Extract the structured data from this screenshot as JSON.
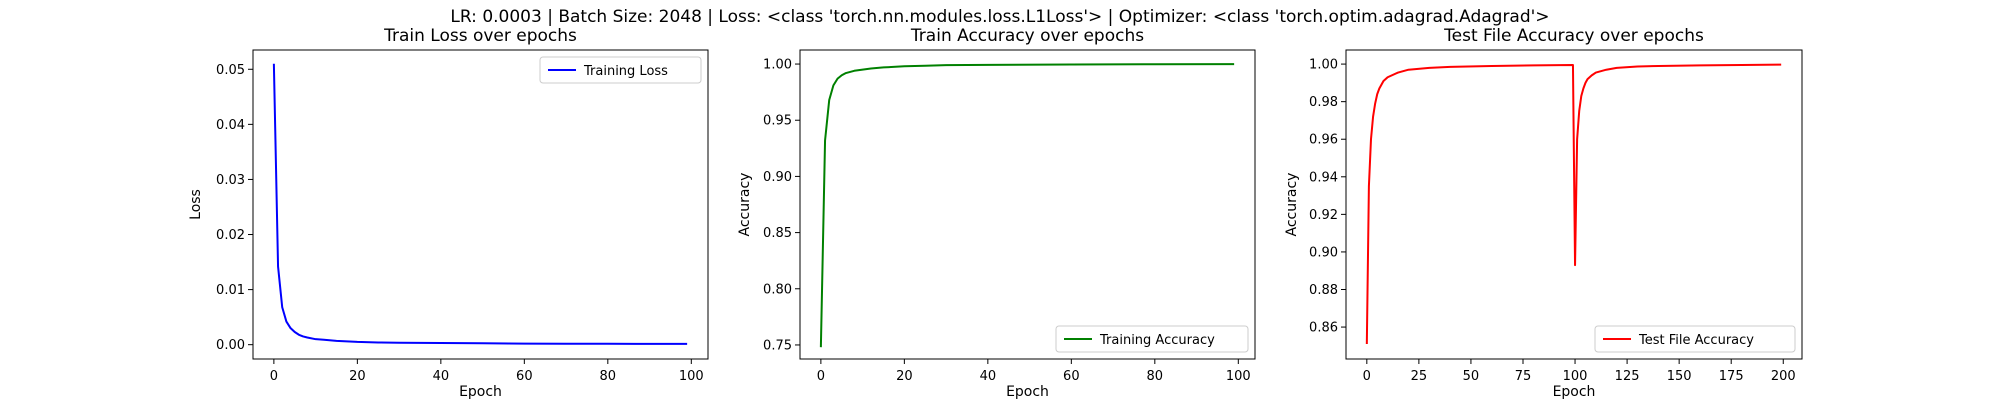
{
  "suptitle": "LR: 0.0003 | Batch Size: 2048 | Loss: <class 'torch.nn.modules.loss.L1Loss'> | Optimizer: <class 'torch.optim.adagrad.Adagrad'>",
  "chart_data": [
    {
      "type": "line",
      "title": "Train Loss over epochs",
      "xlabel": "Epoch",
      "ylabel": "Loss",
      "xlim": [
        -5,
        104
      ],
      "ylim": [
        -0.0026,
        0.0535
      ],
      "xticks": [
        0,
        20,
        40,
        60,
        80,
        100
      ],
      "xtick_labels": [
        "0",
        "20",
        "40",
        "60",
        "80",
        "100"
      ],
      "yticks": [
        0.0,
        0.01,
        0.02,
        0.03,
        0.04,
        0.05
      ],
      "ytick_labels": [
        "0.00",
        "0.01",
        "0.02",
        "0.03",
        "0.04",
        "0.05"
      ],
      "legend": {
        "position": "upper right"
      },
      "series": [
        {
          "name": "Training Loss",
          "color": "#0000ff",
          "x": [
            0,
            1,
            2,
            3,
            4,
            5,
            6,
            7,
            8,
            10,
            12,
            15,
            20,
            25,
            30,
            40,
            50,
            60,
            70,
            80,
            90,
            99
          ],
          "y": [
            0.051,
            0.0142,
            0.0068,
            0.0042,
            0.003,
            0.0023,
            0.0018,
            0.0015,
            0.0013,
            0.001,
            0.0009,
            0.0007,
            0.0005,
            0.0004,
            0.00035,
            0.0003,
            0.00025,
            0.0002,
            0.00018,
            0.00016,
            0.00015,
            0.00014
          ]
        }
      ]
    },
    {
      "type": "line",
      "title": "Train Accuracy over epochs",
      "xlabel": "Epoch",
      "ylabel": "Accuracy",
      "xlim": [
        -5,
        104
      ],
      "ylim": [
        0.7375,
        1.0125
      ],
      "xticks": [
        0,
        20,
        40,
        60,
        80,
        100
      ],
      "xtick_labels": [
        "0",
        "20",
        "40",
        "60",
        "80",
        "100"
      ],
      "yticks": [
        0.75,
        0.8,
        0.85,
        0.9,
        0.95,
        1.0
      ],
      "ytick_labels": [
        "0.75",
        "0.80",
        "0.85",
        "0.90",
        "0.95",
        "1.00"
      ],
      "legend": {
        "position": "lower right"
      },
      "series": [
        {
          "name": "Training Accuracy",
          "color": "#008000",
          "x": [
            0,
            1,
            2,
            3,
            4,
            5,
            6,
            7,
            8,
            10,
            12,
            15,
            20,
            25,
            30,
            40,
            60,
            80,
            99
          ],
          "y": [
            0.748,
            0.932,
            0.968,
            0.981,
            0.987,
            0.99,
            0.992,
            0.993,
            0.994,
            0.995,
            0.996,
            0.997,
            0.998,
            0.9985,
            0.999,
            0.9993,
            0.9996,
            0.9998,
            0.9999
          ]
        }
      ]
    },
    {
      "type": "line",
      "title": "Test File Accuracy over epochs",
      "xlabel": "Epoch",
      "ylabel": "Accuracy",
      "xlim": [
        -10,
        209
      ],
      "ylim": [
        0.843,
        1.0075
      ],
      "xticks": [
        0,
        25,
        50,
        75,
        100,
        125,
        150,
        175,
        200
      ],
      "xtick_labels": [
        "0",
        "25",
        "50",
        "75",
        "100",
        "125",
        "150",
        "175",
        "200"
      ],
      "yticks": [
        0.86,
        0.88,
        0.9,
        0.92,
        0.94,
        0.96,
        0.98,
        1.0
      ],
      "ytick_labels": [
        "0.86",
        "0.88",
        "0.90",
        "0.92",
        "0.94",
        "0.96",
        "0.98",
        "1.00"
      ],
      "legend": {
        "position": "lower right"
      },
      "series": [
        {
          "name": "Test File Accuracy",
          "color": "#ff0000",
          "x": [
            0,
            1,
            2,
            3,
            4,
            5,
            6,
            8,
            10,
            15,
            20,
            30,
            40,
            60,
            80,
            99,
            100,
            101,
            102,
            103,
            104,
            105,
            106,
            108,
            110,
            115,
            120,
            130,
            140,
            160,
            180,
            199
          ],
          "y": [
            0.851,
            0.935,
            0.96,
            0.972,
            0.979,
            0.984,
            0.987,
            0.991,
            0.993,
            0.9955,
            0.997,
            0.998,
            0.9985,
            0.999,
            0.9993,
            0.9995,
            0.893,
            0.96,
            0.975,
            0.983,
            0.987,
            0.99,
            0.992,
            0.994,
            0.9955,
            0.997,
            0.998,
            0.9987,
            0.999,
            0.9993,
            0.9995,
            0.9997
          ]
        }
      ]
    }
  ]
}
